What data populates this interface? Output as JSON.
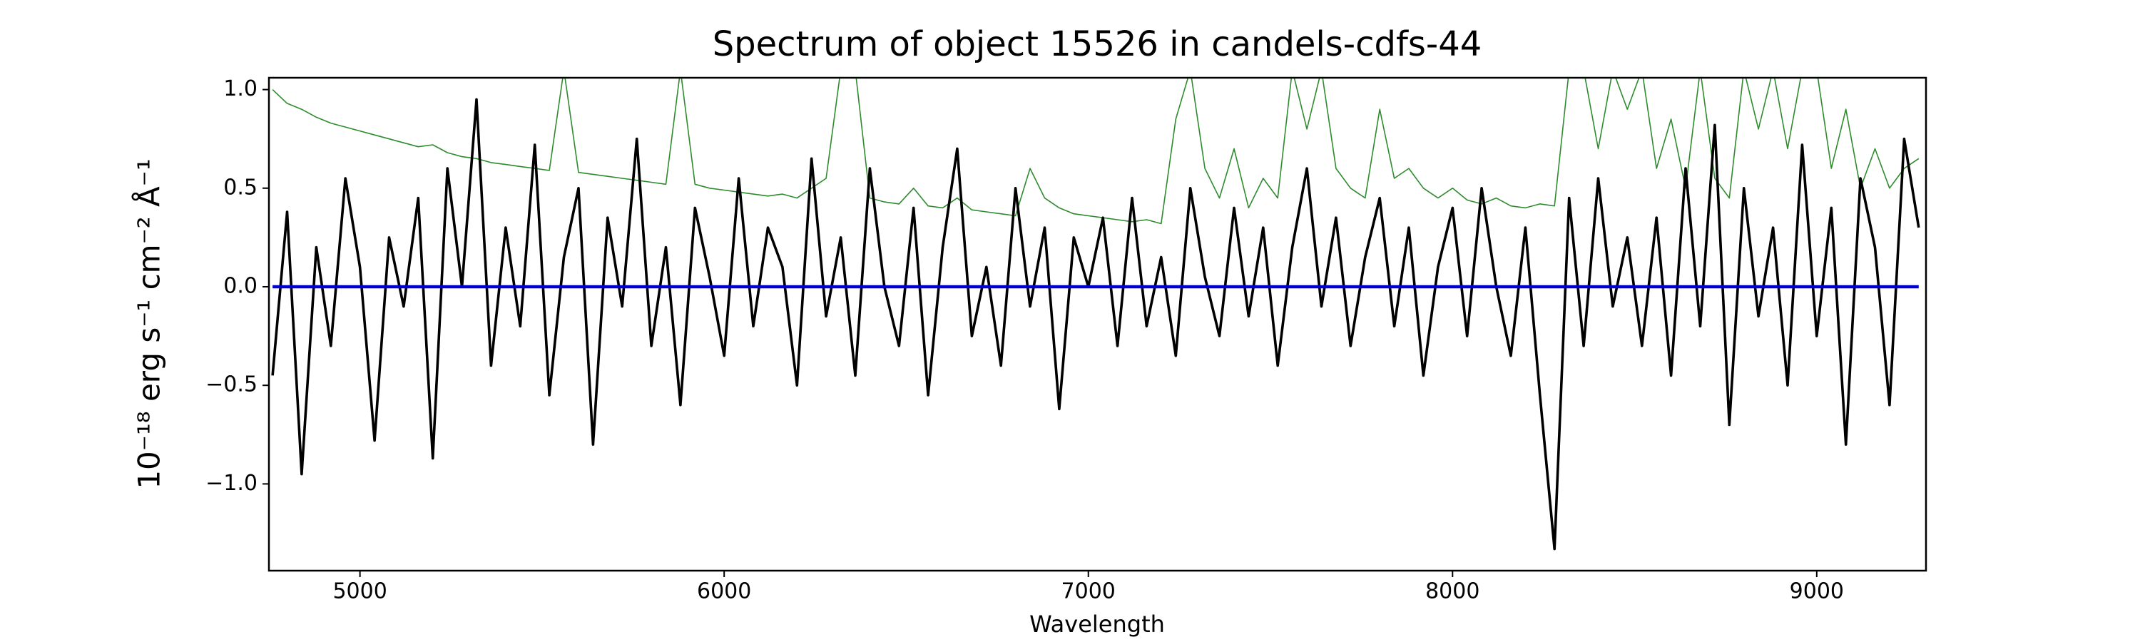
{
  "chart_data": {
    "type": "line",
    "title": "Spectrum of object 15526 in candels-cdfs-44",
    "x_label": "Wavelength",
    "y_label": "10⁻¹⁸ erg s⁻¹ cm⁻² Å⁻¹",
    "xlim": [
      4750,
      9300
    ],
    "ylim": [
      -1.44,
      1.06
    ],
    "xticks": [
      5000,
      6000,
      7000,
      8000,
      9000
    ],
    "yticks": [
      {
        "value": -1.0,
        "label": "−1.0"
      },
      {
        "value": -0.5,
        "label": "−0.5"
      },
      {
        "value": 0.0,
        "label": "0.0"
      },
      {
        "value": 0.5,
        "label": "0.5"
      },
      {
        "value": 1.0,
        "label": "1.0"
      }
    ],
    "series": [
      {
        "color": "#2e8b2e",
        "width": 1.6,
        "x": [
          4760,
          4800,
          4840,
          4880,
          4920,
          4960,
          5000,
          5040,
          5080,
          5120,
          5160,
          5200,
          5240,
          5280,
          5320,
          5360,
          5400,
          5440,
          5480,
          5520,
          5560,
          5600,
          5640,
          5680,
          5720,
          5760,
          5800,
          5840,
          5880,
          5920,
          5960,
          6000,
          6040,
          6080,
          6120,
          6160,
          6200,
          6240,
          6280,
          6320,
          6360,
          6400,
          6440,
          6480,
          6520,
          6560,
          6600,
          6640,
          6680,
          6720,
          6760,
          6800,
          6840,
          6880,
          6920,
          6960,
          7000,
          7040,
          7080,
          7120,
          7160,
          7200,
          7240,
          7280,
          7320,
          7360,
          7400,
          7440,
          7480,
          7520,
          7560,
          7600,
          7640,
          7680,
          7720,
          7760,
          7800,
          7840,
          7880,
          7920,
          7960,
          8000,
          8040,
          8080,
          8120,
          8160,
          8200,
          8240,
          8280,
          8320,
          8360,
          8400,
          8440,
          8480,
          8520,
          8560,
          8600,
          8640,
          8680,
          8720,
          8760,
          8800,
          8840,
          8880,
          8920,
          8960,
          9000,
          9040,
          9080,
          9120,
          9160,
          9200,
          9240,
          9280
        ],
        "values": [
          1.0,
          0.93,
          0.9,
          0.86,
          0.83,
          0.81,
          0.79,
          0.77,
          0.75,
          0.73,
          0.71,
          0.72,
          0.68,
          0.66,
          0.65,
          0.63,
          0.62,
          0.61,
          0.6,
          0.59,
          1.1,
          0.58,
          0.57,
          0.56,
          0.55,
          0.54,
          0.53,
          0.52,
          1.1,
          0.52,
          0.5,
          0.49,
          0.48,
          0.47,
          0.46,
          0.47,
          0.45,
          0.5,
          0.55,
          1.1,
          1.1,
          0.45,
          0.43,
          0.42,
          0.5,
          0.41,
          0.4,
          0.45,
          0.39,
          0.38,
          0.37,
          0.36,
          0.6,
          0.45,
          0.4,
          0.37,
          0.36,
          0.35,
          0.34,
          0.33,
          0.34,
          0.32,
          0.85,
          1.1,
          0.6,
          0.45,
          0.7,
          0.4,
          0.55,
          0.45,
          1.1,
          0.8,
          1.1,
          0.6,
          0.5,
          0.45,
          0.9,
          0.55,
          0.6,
          0.5,
          0.45,
          0.5,
          0.44,
          0.42,
          0.45,
          0.41,
          0.4,
          0.42,
          0.41,
          1.1,
          1.1,
          0.7,
          1.1,
          0.9,
          1.1,
          0.6,
          0.85,
          0.5,
          1.1,
          0.55,
          0.45,
          1.1,
          0.8,
          1.1,
          0.7,
          1.1,
          1.1,
          0.6,
          0.9,
          0.5,
          0.7,
          0.5,
          0.6,
          0.65
        ]
      },
      {
        "color": "#000000",
        "width": 3.6,
        "x": [
          4760,
          4800,
          4840,
          4880,
          4920,
          4960,
          5000,
          5040,
          5080,
          5120,
          5160,
          5200,
          5240,
          5280,
          5320,
          5360,
          5400,
          5440,
          5480,
          5520,
          5560,
          5600,
          5640,
          5680,
          5720,
          5760,
          5800,
          5840,
          5880,
          5920,
          5960,
          6000,
          6040,
          6080,
          6120,
          6160,
          6200,
          6240,
          6280,
          6320,
          6360,
          6400,
          6440,
          6480,
          6520,
          6560,
          6600,
          6640,
          6680,
          6720,
          6760,
          6800,
          6840,
          6880,
          6920,
          6960,
          7000,
          7040,
          7080,
          7120,
          7160,
          7200,
          7240,
          7280,
          7320,
          7360,
          7400,
          7440,
          7480,
          7520,
          7560,
          7600,
          7640,
          7680,
          7720,
          7760,
          7800,
          7840,
          7880,
          7920,
          7960,
          8000,
          8040,
          8080,
          8120,
          8160,
          8200,
          8240,
          8280,
          8320,
          8360,
          8400,
          8440,
          8480,
          8520,
          8560,
          8600,
          8640,
          8680,
          8720,
          8760,
          8800,
          8840,
          8880,
          8920,
          8960,
          9000,
          9040,
          9080,
          9120,
          9160,
          9200,
          9240,
          9280
        ],
        "values": [
          -0.45,
          0.38,
          -0.95,
          0.2,
          -0.3,
          0.55,
          0.1,
          -0.78,
          0.25,
          -0.1,
          0.45,
          -0.87,
          0.6,
          0.0,
          0.95,
          -0.4,
          0.3,
          -0.2,
          0.72,
          -0.55,
          0.15,
          0.5,
          -0.8,
          0.35,
          -0.1,
          0.75,
          -0.3,
          0.2,
          -0.6,
          0.4,
          0.05,
          -0.35,
          0.55,
          -0.2,
          0.3,
          0.1,
          -0.5,
          0.65,
          -0.15,
          0.25,
          -0.45,
          0.6,
          0.0,
          -0.3,
          0.4,
          -0.55,
          0.2,
          0.7,
          -0.25,
          0.1,
          -0.4,
          0.5,
          -0.1,
          0.3,
          -0.62,
          0.25,
          0.0,
          0.35,
          -0.3,
          0.45,
          -0.2,
          0.15,
          -0.35,
          0.5,
          0.05,
          -0.25,
          0.4,
          -0.15,
          0.3,
          -0.4,
          0.2,
          0.6,
          -0.1,
          0.35,
          -0.3,
          0.15,
          0.45,
          -0.2,
          0.3,
          -0.45,
          0.1,
          0.4,
          -0.25,
          0.5,
          0.0,
          -0.35,
          0.3,
          -0.55,
          -1.33,
          0.45,
          -0.3,
          0.55,
          -0.1,
          0.25,
          -0.3,
          0.35,
          -0.45,
          0.6,
          -0.2,
          0.82,
          -0.7,
          0.5,
          -0.15,
          0.3,
          -0.5,
          0.72,
          -0.25,
          0.4,
          -0.8,
          0.55,
          0.2,
          -0.6,
          0.75,
          0.3
        ]
      },
      {
        "color": "#0000cc",
        "width": 4.5,
        "x": [
          4760,
          9280
        ],
        "values": [
          0,
          0
        ]
      }
    ]
  }
}
